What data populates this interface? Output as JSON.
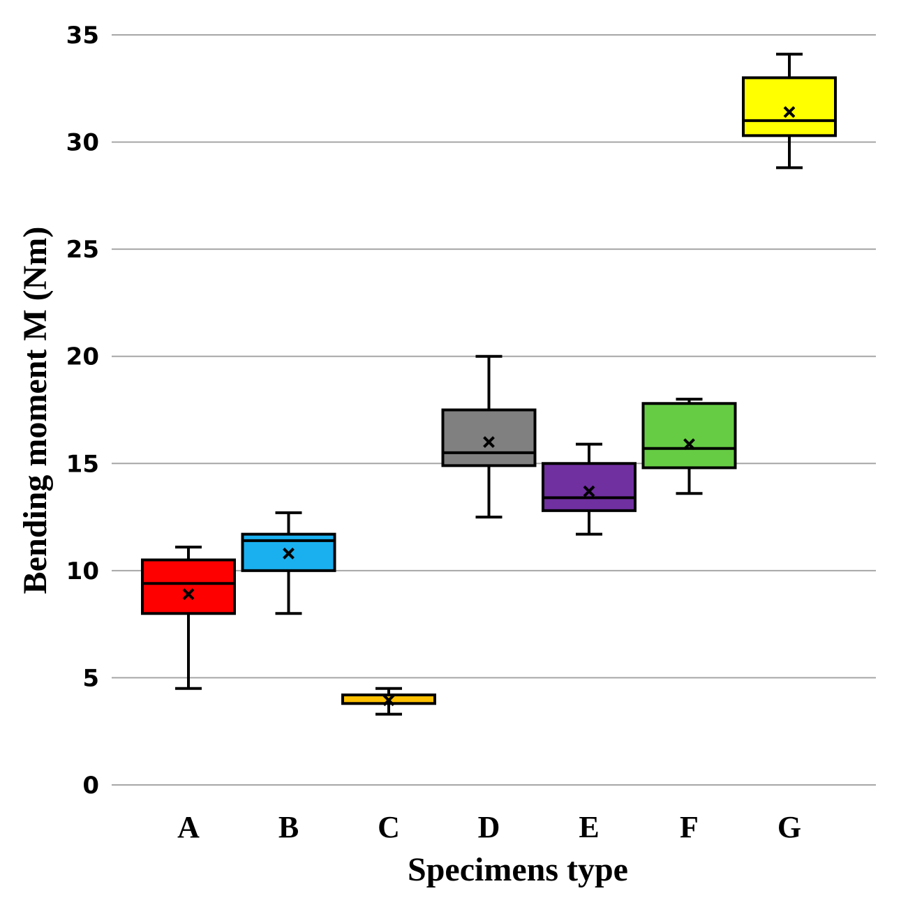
{
  "chart_data": {
    "type": "box",
    "title": "",
    "xlabel": "Specimens type",
    "ylabel": "Bending moment M (Nm)",
    "ylim": [
      0,
      35
    ],
    "yticks": [
      0,
      5,
      10,
      15,
      20,
      25,
      30,
      35
    ],
    "grid": true,
    "categories": [
      "A",
      "B",
      "C",
      "D",
      "E",
      "F",
      "G"
    ],
    "boxes": [
      {
        "category": "A",
        "min": 4.5,
        "q1": 8.0,
        "median": 9.4,
        "q3": 10.5,
        "max": 11.1,
        "mean": 8.9,
        "color": "#ff0000",
        "median_color": "#000000"
      },
      {
        "category": "B",
        "min": 8.0,
        "q1": 10.0,
        "median": 11.4,
        "q3": 11.7,
        "max": 12.7,
        "mean": 10.8,
        "color": "#1ab0f0",
        "median_color": "#000000"
      },
      {
        "category": "C",
        "min": 3.3,
        "q1": 3.8,
        "median": 3.95,
        "q3": 4.2,
        "max": 4.5,
        "mean": 3.95,
        "color": "#ffc000",
        "median_color": "#ffc000"
      },
      {
        "category": "D",
        "min": 12.5,
        "q1": 14.9,
        "median": 15.5,
        "q3": 17.5,
        "max": 20.0,
        "mean": 16.0,
        "color": "#808080",
        "median_color": "#000000"
      },
      {
        "category": "E",
        "min": 11.7,
        "q1": 12.8,
        "median": 13.4,
        "q3": 15.0,
        "max": 15.9,
        "mean": 13.7,
        "color": "#7030a0",
        "median_color": "#000000"
      },
      {
        "category": "F",
        "min": 13.6,
        "q1": 14.8,
        "median": 15.7,
        "q3": 17.8,
        "max": 18.0,
        "mean": 15.9,
        "color": "#66cc44",
        "median_color": "#000000"
      },
      {
        "category": "G",
        "min": 28.8,
        "q1": 30.3,
        "median": 31.0,
        "q3": 33.0,
        "max": 34.1,
        "mean": 31.4,
        "color": "#ffff00",
        "median_color": "#000000"
      }
    ]
  }
}
